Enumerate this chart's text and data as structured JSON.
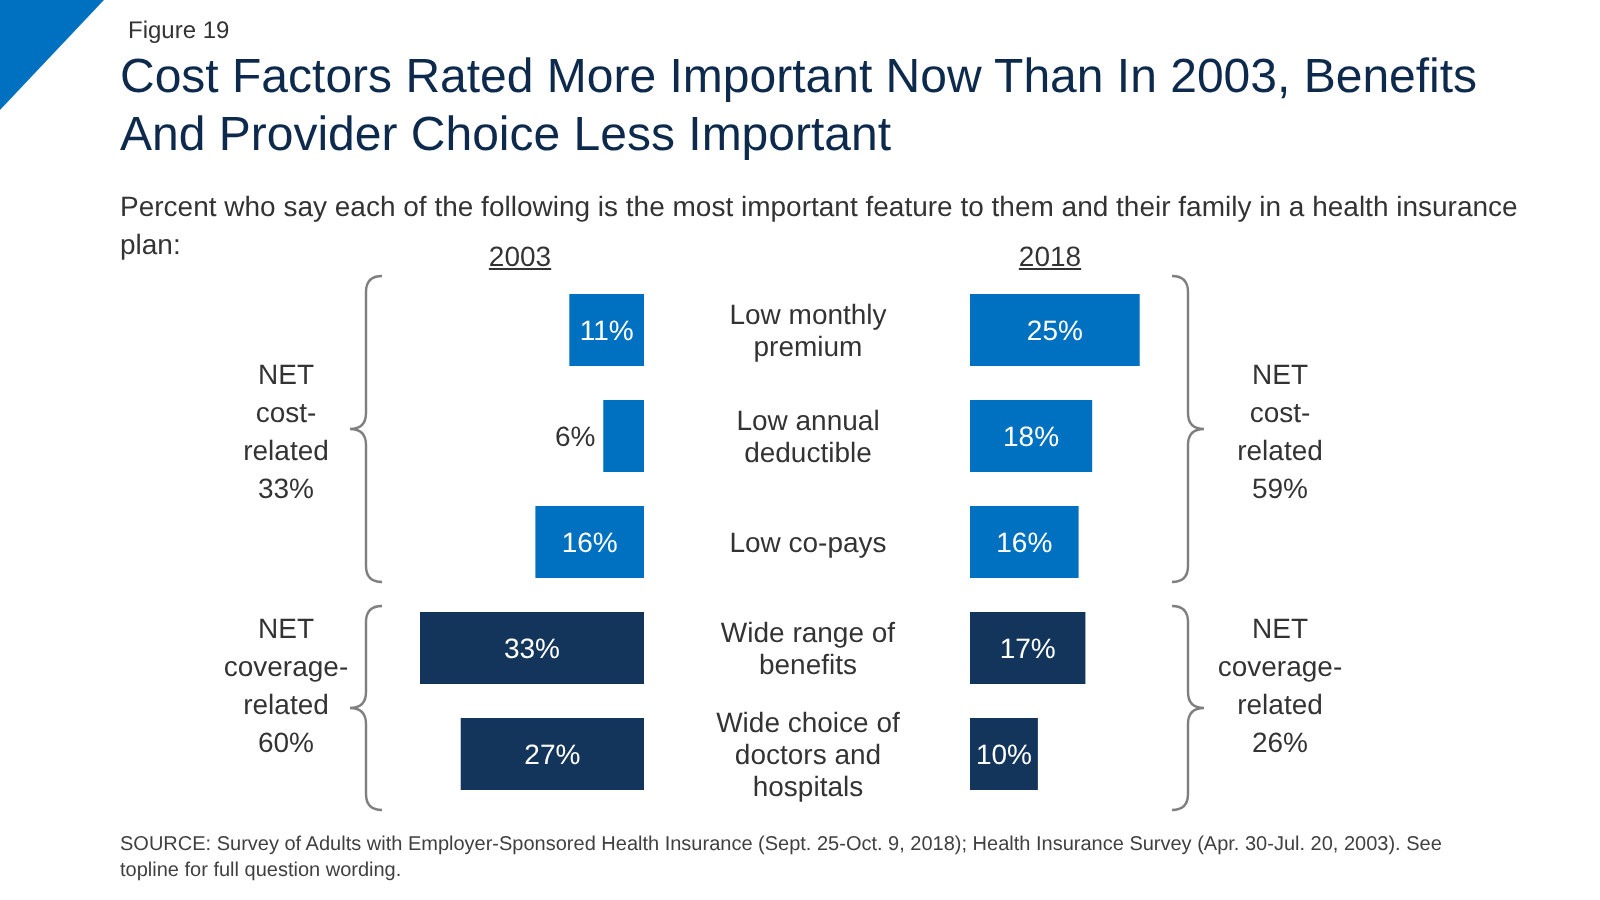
{
  "chart_data": [
    {
      "type": "bar",
      "orientation": "horizontal",
      "title": "Cost Factors Rated More Important Now Than In 2003, Benefits And Provider Choice Less Important",
      "subtitle": "Percent who say each of the following is the most important feature to them and their family in a health insurance plan:",
      "categories": [
        "Low monthly premium",
        "Low annual deductible",
        "Low co-pays",
        "Wide range of benefits",
        "Wide choice of doctors and hospitals"
      ],
      "series": [
        {
          "name": "2003",
          "values": [
            11,
            6,
            16,
            33,
            27
          ],
          "value_labels": [
            "11%",
            "6%",
            "16%",
            "33%",
            "27%"
          ],
          "colors": [
            "#0070c0",
            "#0070c0",
            "#0070c0",
            "#13355b",
            "#13355b"
          ]
        }
      ],
      "legend": false,
      "annotations": [
        "Figure 19",
        "NET cost-related 33%",
        "NET coverage-related 60%"
      ]
    },
    {
      "type": "bar",
      "orientation": "horizontal",
      "categories": [
        null,
        null,
        null,
        null,
        null
      ],
      "series": [
        {
          "name": "2018",
          "values": [
            25,
            18,
            16,
            17,
            10
          ],
          "value_labels": [
            "25%",
            "18%",
            "16%",
            "17%",
            "10%"
          ],
          "colors": [
            "#0070c0",
            "#0070c0",
            "#0070c0",
            "#13355b",
            "#13355b"
          ]
        }
      ],
      "legend": false,
      "annotations": [
        "NET cost-related 59%",
        "NET coverage-related 26%",
        "SOURCE: Survey of Adults with Employer-Sponsored Health Insurance (Sept. 25-Oct. 9, 2018); Health Insurance Survey (Apr. 30-Jul. 20, 2003). See topline for full question wording."
      ]
    }
  ]
}
